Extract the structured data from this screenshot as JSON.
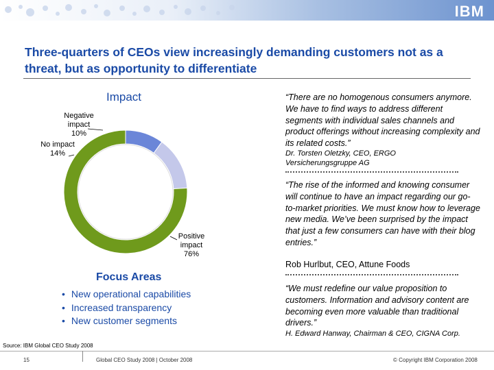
{
  "header": {
    "logo": "IBM"
  },
  "title": "Three-quarters of CEOs view increasingly demanding customers not as a threat, but as opportunity to differentiate",
  "impact": {
    "heading": "Impact",
    "labels": {
      "negative": "Negative impact 10%",
      "no_impact": "No impact 14%",
      "positive": "Positive impact 76%"
    }
  },
  "chart_data": {
    "type": "pie",
    "categories": [
      "Negative impact",
      "No impact",
      "Positive impact"
    ],
    "values": [
      10,
      14,
      76
    ],
    "colors": [
      "#6b86d8",
      "#c4c8ea",
      "#6f9a1c"
    ]
  },
  "focus": {
    "heading": "Focus Areas",
    "items": [
      "New operational capabilities",
      "Increased transparency",
      "New customer segments"
    ]
  },
  "quotes": [
    {
      "text": "“There are no homogenous consumers anymore. We have to find ways to address different segments with individual sales channels and product offerings without increasing complexity and its related costs.”",
      "attribution": "Dr. Torsten Oletzky, CEO, ERGO Versicherungsgruppe AG"
    },
    {
      "text": "“The rise of the informed and knowing consumer will continue to have an impact regarding our go-to-market priorities. We must know how to leverage new media. We’ve been surprised by the impact that just a few consumers can have with their blog entries.”",
      "attribution": "Rob Hurlbut, CEO, Attune Foods"
    },
    {
      "text": "“We must redefine our value proposition to customers. Information and advisory content are becoming even more valuable than traditional drivers.”",
      "attribution": "H. Edward Hanway, Chairman & CEO, CIGNA Corp."
    }
  ],
  "source": "Source: IBM Global CEO Study 2008",
  "footer": {
    "page": "15",
    "center": "Global CEO Study 2008 | October 2008",
    "copyright": "© Copyright IBM Corporation 2008"
  }
}
